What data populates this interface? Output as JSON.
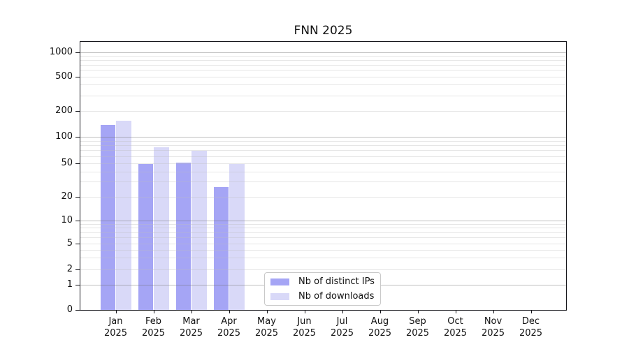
{
  "chart_data": {
    "type": "bar",
    "title": "FNN 2025",
    "categories": [
      "Jan",
      "Feb",
      "Mar",
      "Apr",
      "May",
      "Jun",
      "Jul",
      "Aug",
      "Sep",
      "Oct",
      "Nov",
      "Dec"
    ],
    "year_label": "2025",
    "series": [
      {
        "name": "Nb of distinct IPs",
        "color": "#a5a5f5",
        "values": [
          136,
          49,
          51,
          26,
          0,
          0,
          0,
          0,
          0,
          0,
          0,
          0
        ]
      },
      {
        "name": "Nb of downloads",
        "color": "#d9d9f8",
        "values": [
          152,
          76,
          69,
          49,
          0,
          0,
          0,
          0,
          0,
          0,
          0,
          0
        ]
      }
    ],
    "yticks": [
      0,
      1,
      2,
      5,
      10,
      20,
      50,
      100,
      200,
      500,
      1000
    ],
    "ylim": [
      0,
      1000
    ],
    "yscale": "symlog",
    "xlabel": "",
    "ylabel": "",
    "grid": true,
    "legend_position": "lower center"
  }
}
